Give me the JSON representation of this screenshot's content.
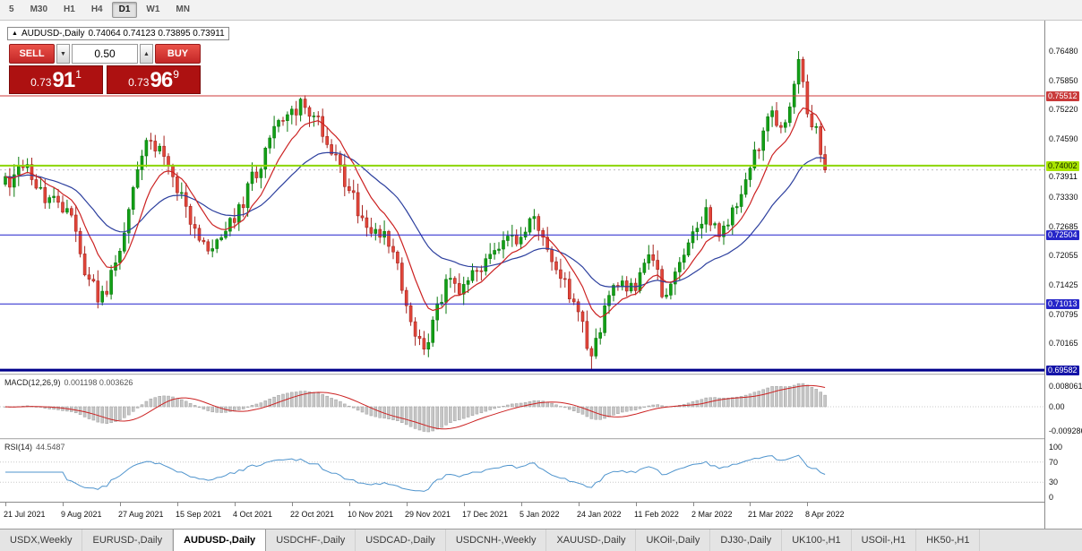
{
  "toolbar": {
    "timeframes": [
      {
        "label": "5",
        "active": false
      },
      {
        "label": "M30",
        "active": false
      },
      {
        "label": "H1",
        "active": false
      },
      {
        "label": "H4",
        "active": false
      },
      {
        "label": "D1",
        "active": true
      },
      {
        "label": "W1",
        "active": false
      },
      {
        "label": "MN",
        "active": false
      }
    ]
  },
  "chart_header": {
    "collapse_icon": "▲",
    "symbol_title": "AUDUSD-,Daily",
    "ohlc": "0.74064 0.74123 0.73895 0.73911"
  },
  "trade_panel": {
    "sell_label": "SELL",
    "buy_label": "BUY",
    "volume": "0.50",
    "spin_down_icon": "▼",
    "spin_up_icon": "▲",
    "sell_price": {
      "prefix": "0.73",
      "big": "91",
      "sup": "1"
    },
    "buy_price": {
      "prefix": "0.73",
      "big": "96",
      "sup": "9"
    }
  },
  "price_axis": {
    "ticks": [
      "0.76480",
      "0.75850",
      "0.75220",
      "0.74590",
      "0.73330",
      "0.72685",
      "0.72055",
      "0.71425",
      "0.70795",
      "0.70165"
    ],
    "chips": [
      {
        "value": "0.75512",
        "bg": "#c93a3a",
        "fg": "#ffffff",
        "dy": 0
      },
      {
        "value": "0.74002",
        "bg": "#a8e400",
        "fg": "#102000",
        "dy": 0
      },
      {
        "value": "0.73911",
        "bg": "",
        "fg": "#000000",
        "dy": 7
      },
      {
        "value": "0.72504",
        "bg": "#2525c8",
        "fg": "#ffffff",
        "dy": 0
      },
      {
        "value": "0.71013",
        "bg": "#2525c8",
        "fg": "#ffffff",
        "dy": 0
      },
      {
        "value": "0.69582",
        "bg": "#1414a8",
        "fg": "#ffffff",
        "dy": 0
      }
    ]
  },
  "chart_data": {
    "type": "candlestick",
    "symbol": "AUDUSD-",
    "timeframe": "Daily",
    "n_candles": 187,
    "ylim": [
      0.69507,
      0.77139
    ],
    "last_close": 0.73911,
    "close_anchors": [
      [
        0,
        0.736
      ],
      [
        4,
        0.7398
      ],
      [
        8,
        0.7345
      ],
      [
        14,
        0.731
      ],
      [
        18,
        0.718
      ],
      [
        22,
        0.7108
      ],
      [
        26,
        0.7205
      ],
      [
        29,
        0.735
      ],
      [
        32,
        0.7465
      ],
      [
        36,
        0.743
      ],
      [
        39,
        0.736
      ],
      [
        43,
        0.7255
      ],
      [
        46,
        0.7228
      ],
      [
        50,
        0.7262
      ],
      [
        52,
        0.729
      ],
      [
        55,
        0.7345
      ],
      [
        58,
        0.7408
      ],
      [
        61,
        0.747
      ],
      [
        64,
        0.75
      ],
      [
        67,
        0.7545
      ],
      [
        70,
        0.7505
      ],
      [
        73,
        0.7448
      ],
      [
        76,
        0.74
      ],
      [
        78,
        0.7335
      ],
      [
        81,
        0.73
      ],
      [
        84,
        0.7262
      ],
      [
        87,
        0.723
      ],
      [
        90,
        0.715
      ],
      [
        93,
        0.7048
      ],
      [
        95,
        0.7005
      ],
      [
        97,
        0.706
      ],
      [
        100,
        0.715
      ],
      [
        103,
        0.7125
      ],
      [
        106,
        0.716
      ],
      [
        109,
        0.7195
      ],
      [
        112,
        0.723
      ],
      [
        115,
        0.7245
      ],
      [
        118,
        0.7262
      ],
      [
        121,
        0.728
      ],
      [
        124,
        0.7205
      ],
      [
        127,
        0.716
      ],
      [
        130,
        0.7075
      ],
      [
        133,
        0.699
      ],
      [
        135,
        0.706
      ],
      [
        137,
        0.7135
      ],
      [
        140,
        0.7148
      ],
      [
        143,
        0.714
      ],
      [
        146,
        0.7215
      ],
      [
        148,
        0.7165
      ],
      [
        150,
        0.7108
      ],
      [
        153,
        0.718
      ],
      [
        156,
        0.7262
      ],
      [
        159,
        0.7308
      ],
      [
        162,
        0.7258
      ],
      [
        165,
        0.7295
      ],
      [
        168,
        0.7375
      ],
      [
        171,
        0.745
      ],
      [
        174,
        0.7512
      ],
      [
        176,
        0.7478
      ],
      [
        178,
        0.7522
      ],
      [
        180,
        0.7612
      ],
      [
        182,
        0.753
      ],
      [
        184,
        0.7465
      ],
      [
        186,
        0.7391
      ]
    ],
    "overrides": {
      "133": {
        "low": 0.6958
      },
      "180": {
        "high": 0.7648
      }
    },
    "hlines": [
      {
        "price": 0.75512,
        "color": "#cf3a3a",
        "width": 1
      },
      {
        "price": 0.74002,
        "color": "#8cd600",
        "width": 2
      },
      {
        "price": 0.72504,
        "color": "#2121cc",
        "width": 1
      },
      {
        "price": 0.71013,
        "color": "#2121cc",
        "width": 1
      },
      {
        "price": 0.69582,
        "color": "#00008b",
        "width": 3
      }
    ],
    "bid_line": {
      "price": 0.73911,
      "color": "#bdbdbd"
    },
    "colors": {
      "up": "#12a016",
      "up_stroke": "#0b7a0e",
      "down": "#e2463a",
      "down_stroke": "#a62420",
      "ma_fast": "#cc2222",
      "ma_slow": "#2c3f9e"
    },
    "ma": {
      "fast_period": 10,
      "slow_period": 30
    },
    "macd": {
      "label": "MACD(12,26,9)",
      "values": "0.001198 0.003626",
      "fast": 12,
      "slow": 26,
      "signal": 9,
      "ylim": [
        -0.012091,
        0.012091
      ],
      "axis_labels": [
        {
          "text": "0.008061",
          "value": 0.008061
        },
        {
          "text": "0.00",
          "value": 0
        },
        {
          "text": "-0.009286",
          "value": -0.009286
        }
      ],
      "bar_color": "#c6c6c6",
      "bar_stroke": "#9e9e9e",
      "signal_color": "#cc2222"
    },
    "rsi": {
      "label": "RSI(14)",
      "value": "44.5487",
      "period": 14,
      "levels": [
        70,
        30
      ],
      "axis_labels": [
        {
          "text": "100",
          "value": 100
        },
        {
          "text": "70",
          "value": 70
        },
        {
          "text": "30",
          "value": 30
        },
        {
          "text": "0",
          "value": 0
        }
      ],
      "line_color": "#4f94cd"
    },
    "x_axis": {
      "tick_step_candles": 13,
      "labels": [
        "21 Jul 2021",
        "9 Aug 2021",
        "27 Aug 2021",
        "15 Sep 2021",
        "4 Oct 2021",
        "22 Oct 2021",
        "10 Nov 2021",
        "29 Nov 2021",
        "17 Dec 2021",
        "5 Jan 2022",
        "24 Jan 2022",
        "11 Feb 2022",
        "2 Mar 2022",
        "21 Mar 2022",
        "8 Apr 2022"
      ]
    }
  },
  "tabs": {
    "active_index": 2,
    "items": [
      {
        "label": "USDX,Weekly"
      },
      {
        "label": "EURUSD-,Daily"
      },
      {
        "label": "AUDUSD-,Daily"
      },
      {
        "label": "USDCHF-,Daily"
      },
      {
        "label": "USDCAD-,Daily"
      },
      {
        "label": "USDCNH-,Weekly"
      },
      {
        "label": "XAUUSD-,Daily"
      },
      {
        "label": "UKOil-,Daily"
      },
      {
        "label": "DJ30-,Daily"
      },
      {
        "label": "UK100-,H1"
      },
      {
        "label": "USOil-,H1"
      },
      {
        "label": "HK50-,H1"
      }
    ]
  }
}
